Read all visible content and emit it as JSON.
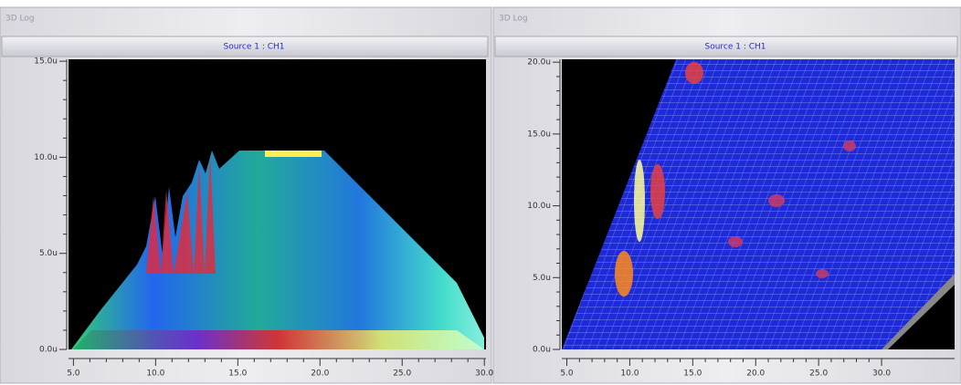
{
  "chart_data": [
    {
      "type": "surface",
      "panel_title": "3D Log",
      "title": "Source 1 : CH1",
      "xlim": [
        4.7,
        30.1
      ],
      "ylim": [
        0,
        15.1
      ],
      "xticks": [
        {
          "value": 5,
          "label": "5.0"
        },
        {
          "value": 10,
          "label": "10.0"
        },
        {
          "value": 15,
          "label": "15.0"
        },
        {
          "value": 20,
          "label": "20.0"
        },
        {
          "value": 25,
          "label": "25.0"
        },
        {
          "value": 30,
          "label": "30.0"
        }
      ],
      "yticks": [
        {
          "value": 0,
          "label": "0.0u"
        },
        {
          "value": 5,
          "label": "5.0u"
        },
        {
          "value": 10,
          "label": "10.0u"
        },
        {
          "value": 15,
          "label": "15.0u"
        }
      ]
    },
    {
      "type": "surface",
      "panel_title": "3D Log",
      "title": "Source 1 : CH1",
      "xlim": [
        4.6,
        35.8
      ],
      "ylim": [
        0,
        20.2
      ],
      "xticks": [
        {
          "value": 5,
          "label": "5.0"
        },
        {
          "value": 10,
          "label": "10.0"
        },
        {
          "value": 15,
          "label": "15.0"
        },
        {
          "value": 20,
          "label": "20.0"
        },
        {
          "value": 25,
          "label": "25.0"
        },
        {
          "value": 30,
          "label": "30.0"
        }
      ],
      "yticks": [
        {
          "value": 0,
          "label": "0.0u"
        },
        {
          "value": 5,
          "label": "5.0u"
        },
        {
          "value": 10,
          "label": "10.0u"
        },
        {
          "value": 15,
          "label": "15.0u"
        },
        {
          "value": 20,
          "label": "20.0u"
        }
      ]
    }
  ]
}
